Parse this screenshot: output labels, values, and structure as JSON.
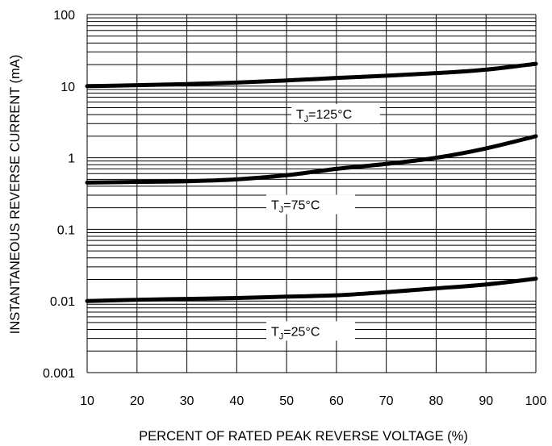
{
  "chart_data": {
    "type": "line",
    "title": "",
    "xlabel": "PERCENT OF RATED PEAK REVERSE VOLTAGE (%)",
    "ylabel": "INSTANTANEOUS REVERSE CURRENT (mA)",
    "xlim": [
      10,
      100
    ],
    "ylim": [
      0.001,
      100
    ],
    "yscale": "log",
    "grid": true,
    "legend": "inline labels on curves",
    "xticks": [
      "10",
      "20",
      "30",
      "40",
      "50",
      "60",
      "70",
      "80",
      "90",
      "100"
    ],
    "yticks": [
      "0.001",
      "0.01",
      "0.1",
      "1",
      "10",
      "100"
    ],
    "x": [
      10,
      20,
      30,
      40,
      50,
      60,
      70,
      80,
      90,
      100
    ],
    "series": [
      {
        "name": "TJ=125°C",
        "label_main": "T",
        "label_sub": "J",
        "label_rest": "=125°C",
        "values": [
          10,
          10.3,
          10.7,
          11.2,
          12.0,
          13.0,
          14.0,
          15.2,
          17.0,
          20.5
        ]
      },
      {
        "name": "TJ=75°C",
        "label_main": "T",
        "label_sub": "J",
        "label_rest": "=75°C",
        "values": [
          0.45,
          0.46,
          0.47,
          0.5,
          0.57,
          0.7,
          0.82,
          1.0,
          1.35,
          2.0
        ]
      },
      {
        "name": "TJ=25°C",
        "label_main": "T",
        "label_sub": "J",
        "label_rest": "=25°C",
        "values": [
          0.01,
          0.0104,
          0.0107,
          0.011,
          0.0115,
          0.012,
          0.0133,
          0.015,
          0.017,
          0.0205
        ]
      }
    ]
  }
}
